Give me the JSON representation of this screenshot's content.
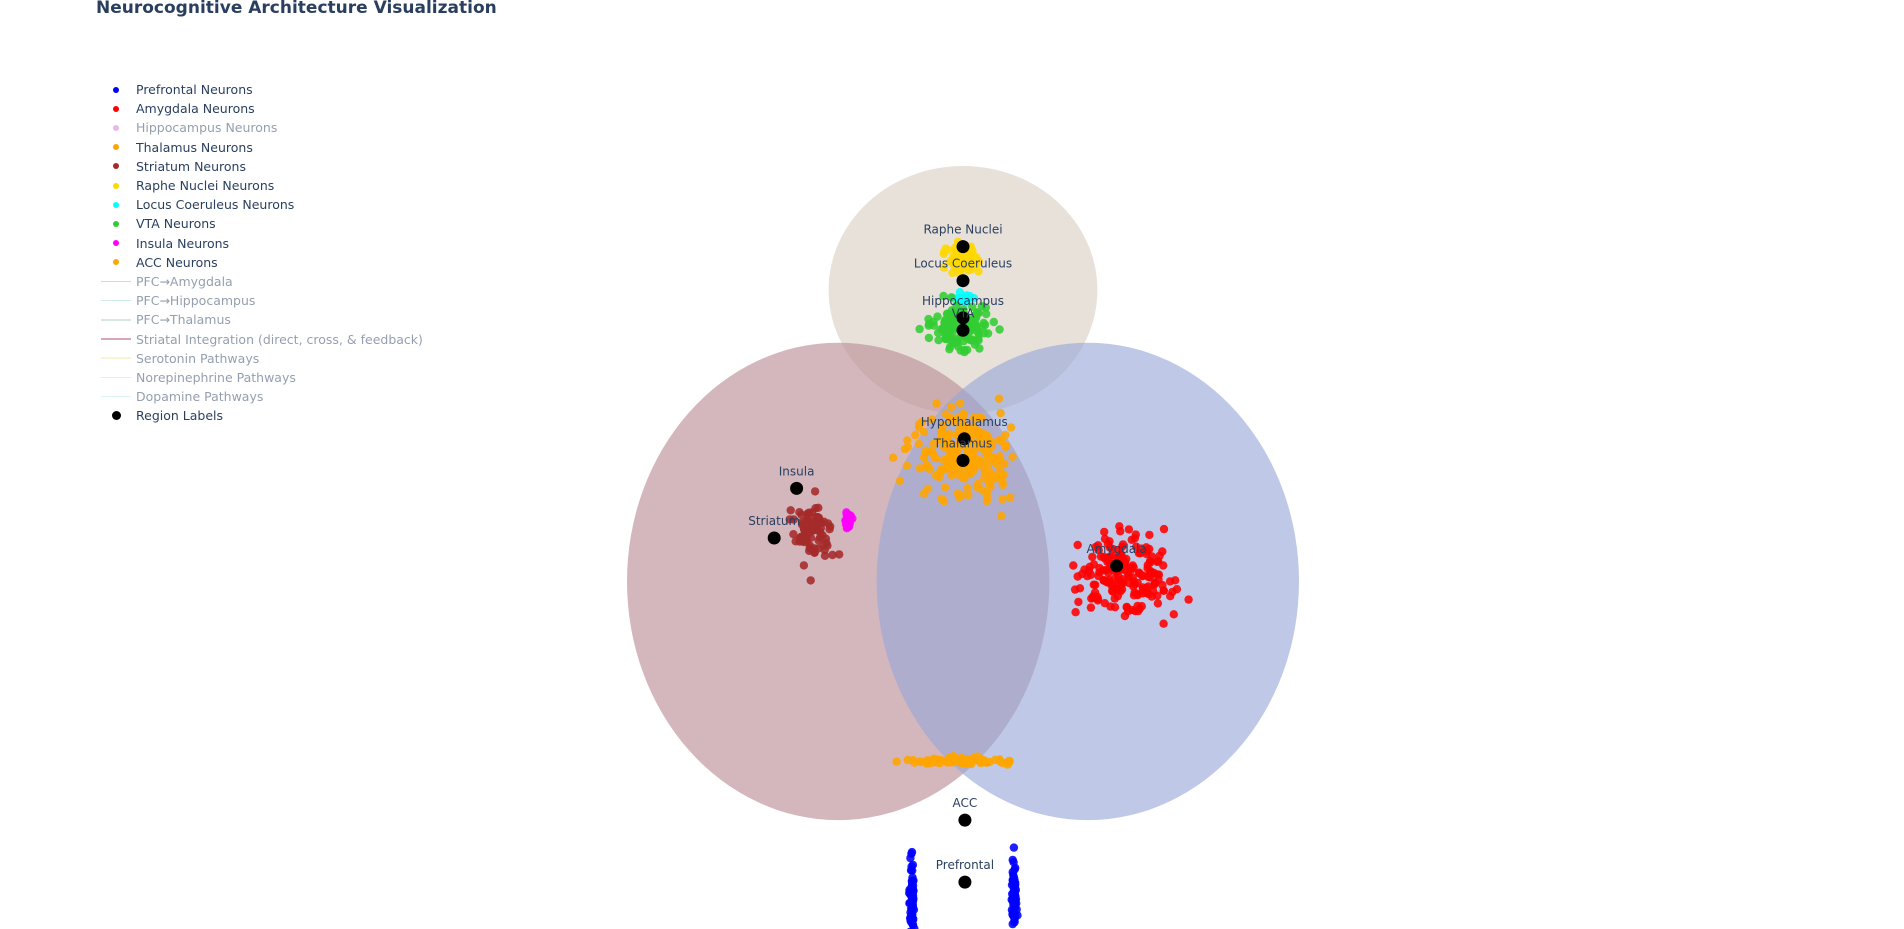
{
  "title": "Neurocognitive Architecture Visualization",
  "chart_data": {
    "type": "scatter",
    "title": "Neurocognitive Architecture Visualization",
    "xlabel": "",
    "ylabel": "",
    "xlim": [
      -5,
      5
    ],
    "ylim": [
      -5,
      5
    ],
    "grid": false,
    "legend_placement": "top-left",
    "ellipsoids": [
      {
        "cx": 0,
        "cy": 3.5,
        "rx": 2.1,
        "ry": 2.0,
        "color": "#d8cfc2"
      },
      {
        "cx": -1.95,
        "cy": -1.2,
        "rx": 3.3,
        "ry": 3.85,
        "color": "#b98a94"
      },
      {
        "cx": 1.95,
        "cy": -1.2,
        "rx": 3.3,
        "ry": 3.85,
        "color": "#98a6d8"
      }
    ],
    "series": [
      {
        "name": "Prefrontal Neurons",
        "color": "#0000ff",
        "dim": false,
        "kind": "marker",
        "clusters": [
          {
            "cx": -0.8,
            "cy": -6.3,
            "sx": 0.04,
            "sy": 0.62,
            "n": 70
          },
          {
            "cx": 0.8,
            "cy": -6.3,
            "sx": 0.04,
            "sy": 0.62,
            "n": 70
          }
        ]
      },
      {
        "name": "Amygdala Neurons",
        "color": "#ff0000",
        "dim": false,
        "kind": "marker",
        "clusters": [
          {
            "cx": 2.5,
            "cy": -1.1,
            "sx": 0.85,
            "sy": 0.65,
            "n": 190
          }
        ]
      },
      {
        "name": "Hippocampus Neurons",
        "color": "#da70d6",
        "dim": true,
        "kind": "marker",
        "clusters": []
      },
      {
        "name": "Thalamus Neurons",
        "color": "#ffa500",
        "dim": false,
        "kind": "marker",
        "clusters": [
          {
            "cx": 0,
            "cy": 0.9,
            "sx": 0.85,
            "sy": 0.7,
            "n": 220
          },
          {
            "cx": 0,
            "cy": -4.1,
            "sx": 0.82,
            "sy": 0.06,
            "n": 90
          }
        ]
      },
      {
        "name": "Striatum Neurons",
        "color": "#a52a2a",
        "dim": false,
        "kind": "marker",
        "clusters": [
          {
            "cx": -2.35,
            "cy": -0.4,
            "sx": 0.28,
            "sy": 0.55,
            "n": 80
          }
        ]
      },
      {
        "name": "Raphe Nuclei Neurons",
        "color": "#ffd700",
        "dim": false,
        "kind": "marker",
        "clusters": [
          {
            "cx": 0,
            "cy": 4.0,
            "sx": 0.28,
            "sy": 0.28,
            "n": 70
          }
        ]
      },
      {
        "name": "Locus Coeruleus Neurons",
        "color": "#00ffff",
        "dim": false,
        "kind": "marker",
        "clusters": [
          {
            "cx": 0,
            "cy": 3.35,
            "sx": 0.18,
            "sy": 0.08,
            "n": 25
          }
        ]
      },
      {
        "name": "VTA Neurons",
        "color": "#32cd32",
        "dim": false,
        "kind": "marker",
        "clusters": [
          {
            "cx": 0,
            "cy": 2.9,
            "sx": 0.55,
            "sy": 0.4,
            "n": 130
          }
        ]
      },
      {
        "name": "Insula Neurons",
        "color": "#ff00ff",
        "dim": false,
        "kind": "marker",
        "clusters": [
          {
            "cx": -1.8,
            "cy": -0.2,
            "sx": 0.07,
            "sy": 0.18,
            "n": 25
          }
        ]
      },
      {
        "name": "ACC Neurons",
        "color": "#ffa500",
        "dim": false,
        "kind": "marker",
        "clusters": []
      },
      {
        "name": "PFC→Amygdala",
        "color": "#ff8a8a",
        "dim": true,
        "kind": "line"
      },
      {
        "name": "PFC→Hippocampus",
        "color": "#9fd9d9",
        "dim": true,
        "kind": "line"
      },
      {
        "name": "PFC→Thalamus",
        "color": "#b0d0c0",
        "dim": true,
        "kind": "line"
      },
      {
        "name": "Striatal Integration (direct, cross, & feedback)",
        "color": "#b04c7a",
        "dim": true,
        "kind": "line"
      },
      {
        "name": "Serotonin Pathways",
        "color": "#f3e9a3",
        "dim": true,
        "kind": "line"
      },
      {
        "name": "Norepinephrine Pathways",
        "color": "#cfd9c9",
        "dim": true,
        "kind": "line"
      },
      {
        "name": "Dopamine Pathways",
        "color": "#b8e6e6",
        "dim": true,
        "kind": "line"
      },
      {
        "name": "Region Labels",
        "color": "#000000",
        "dim": false,
        "kind": "marker-big"
      }
    ],
    "region_labels": [
      {
        "text": "Raphe Nuclei",
        "x": 0,
        "y": 4.2
      },
      {
        "text": "Locus Coeruleus",
        "x": 0,
        "y": 3.65
      },
      {
        "text": "Hippocampus",
        "x": 0,
        "y": 3.05
      },
      {
        "text": "VTA",
        "x": 0,
        "y": 2.85
      },
      {
        "text": "Hypothalamus",
        "x": 0.02,
        "y": 1.1
      },
      {
        "text": "Thalamus",
        "x": 0,
        "y": 0.75
      },
      {
        "text": "Insula",
        "x": -2.6,
        "y": 0.3
      },
      {
        "text": "Striatum",
        "x": -2.95,
        "y": -0.5
      },
      {
        "text": "Amygdala",
        "x": 2.4,
        "y": -0.95
      },
      {
        "text": "ACC",
        "x": 0.03,
        "y": -5.05
      },
      {
        "text": "Prefrontal",
        "x": 0.03,
        "y": -6.05
      }
    ]
  }
}
